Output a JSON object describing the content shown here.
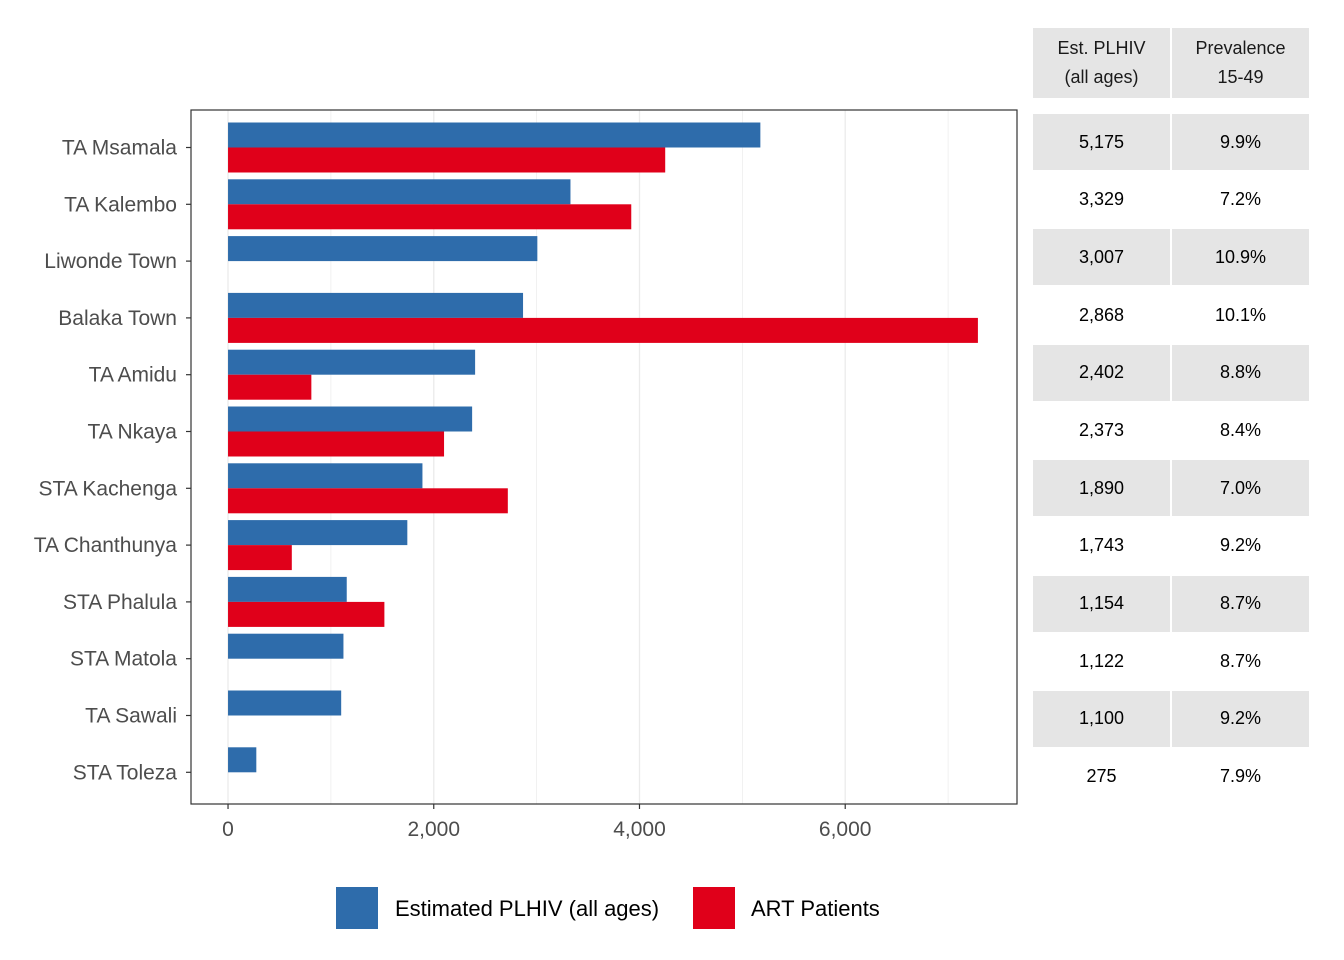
{
  "chart_data": {
    "type": "bar",
    "orientation": "horizontal",
    "categories": [
      "TA Msamala",
      "TA Kalembo",
      "Liwonde Town",
      "Balaka Town",
      "TA Amidu",
      "TA Nkaya",
      "STA Kachenga",
      "TA Chanthunya",
      "STA Phalula",
      "STA Matola",
      "TA Sawali",
      "STA Toleza"
    ],
    "series": [
      {
        "name": "Estimated PLHIV (all ages)",
        "color": "#2E6CAB",
        "values": [
          5175,
          3329,
          3007,
          2868,
          2402,
          2373,
          1890,
          1743,
          1154,
          1122,
          1100,
          275
        ]
      },
      {
        "name": "ART Patients",
        "color": "#E0001A",
        "values": [
          4250,
          3920,
          null,
          7290,
          810,
          2100,
          2720,
          620,
          1520,
          null,
          null,
          null
        ]
      }
    ],
    "x_ticks": [
      0,
      2000,
      4000,
      6000
    ],
    "x_tick_labels": [
      "0",
      "2,000",
      "4,000",
      "6,000"
    ],
    "xlim": [
      -360,
      7670
    ],
    "grid": true,
    "legend_position": "bottom",
    "title": "",
    "xlabel": "",
    "ylabel": ""
  },
  "table": {
    "headers": [
      "Est. PLHIV\n(all ages)",
      "Prevalence\n15-49"
    ],
    "rows": [
      [
        "5,175",
        "9.9%"
      ],
      [
        "3,329",
        "7.2%"
      ],
      [
        "3,007",
        "10.9%"
      ],
      [
        "2,868",
        "10.1%"
      ],
      [
        "2,402",
        "8.8%"
      ],
      [
        "2,373",
        "8.4%"
      ],
      [
        "1,890",
        "7.0%"
      ],
      [
        "1,743",
        "9.2%"
      ],
      [
        "1,154",
        "8.7%"
      ],
      [
        "1,122",
        "8.7%"
      ],
      [
        "1,100",
        "9.2%"
      ],
      [
        "275",
        "7.9%"
      ]
    ],
    "shade_color": "#E5E5E5"
  }
}
